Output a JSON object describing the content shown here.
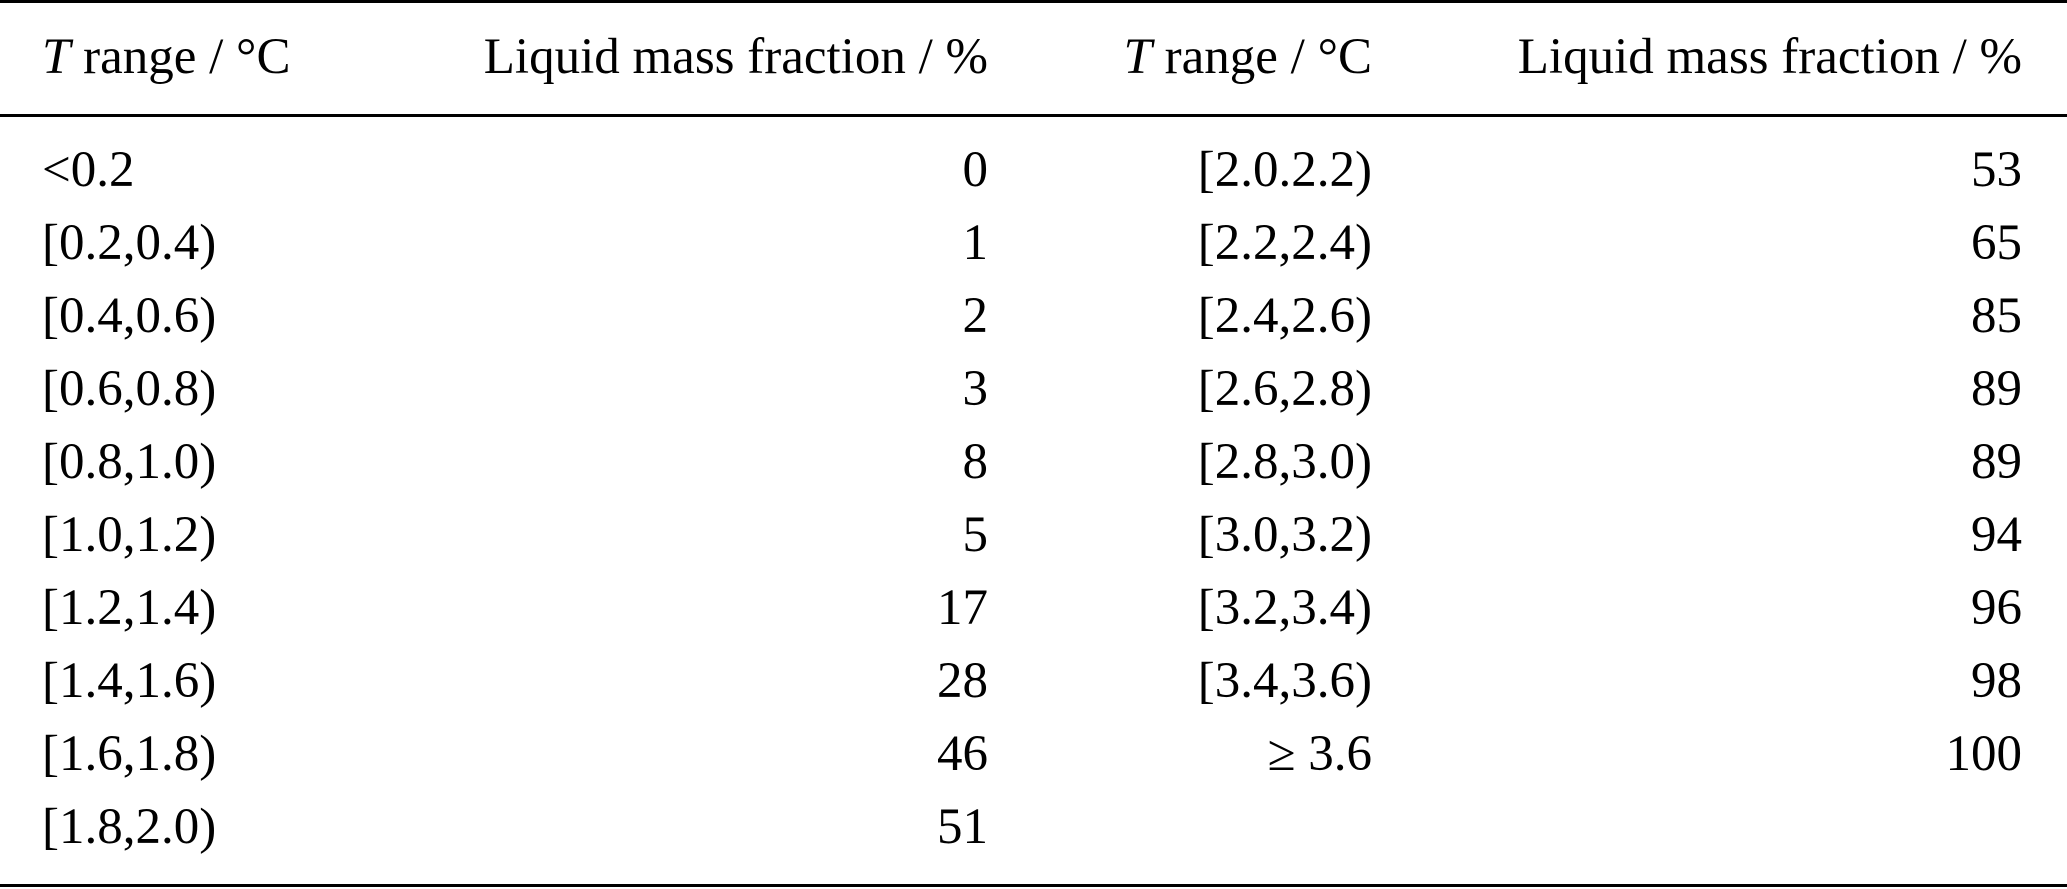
{
  "header": {
    "col1_var": "T",
    "col1_rest": " range / °C",
    "col2": "Liquid mass fraction / %",
    "col3_var": "T",
    "col3_rest": " range / °C",
    "col4": "Liquid mass fraction / %"
  },
  "rows": [
    {
      "r1": "<0.2",
      "v1": "0",
      "r2": "[2.0.2.2)",
      "v2": "53"
    },
    {
      "r1": "[0.2,0.4)",
      "v1": "1",
      "r2": "[2.2,2.4)",
      "v2": "65"
    },
    {
      "r1": "[0.4,0.6)",
      "v1": "2",
      "r2": "[2.4,2.6)",
      "v2": "85"
    },
    {
      "r1": "[0.6,0.8)",
      "v1": "3",
      "r2": "[2.6,2.8)",
      "v2": "89"
    },
    {
      "r1": "[0.8,1.0)",
      "v1": "8",
      "r2": "[2.8,3.0)",
      "v2": "89"
    },
    {
      "r1": "[1.0,1.2)",
      "v1": "5",
      "r2": "[3.0,3.2)",
      "v2": "94"
    },
    {
      "r1": "[1.2,1.4)",
      "v1": "17",
      "r2": "[3.2,3.4)",
      "v2": "96"
    },
    {
      "r1": "[1.4,1.6)",
      "v1": "28",
      "r2": "[3.4,3.6)",
      "v2": "98"
    },
    {
      "r1": "[1.6,1.8)",
      "v1": "46",
      "r2": "≥ 3.6",
      "v2": "100"
    },
    {
      "r1": "[1.8,2.0)",
      "v1": "51",
      "r2": "",
      "v2": ""
    }
  ]
}
